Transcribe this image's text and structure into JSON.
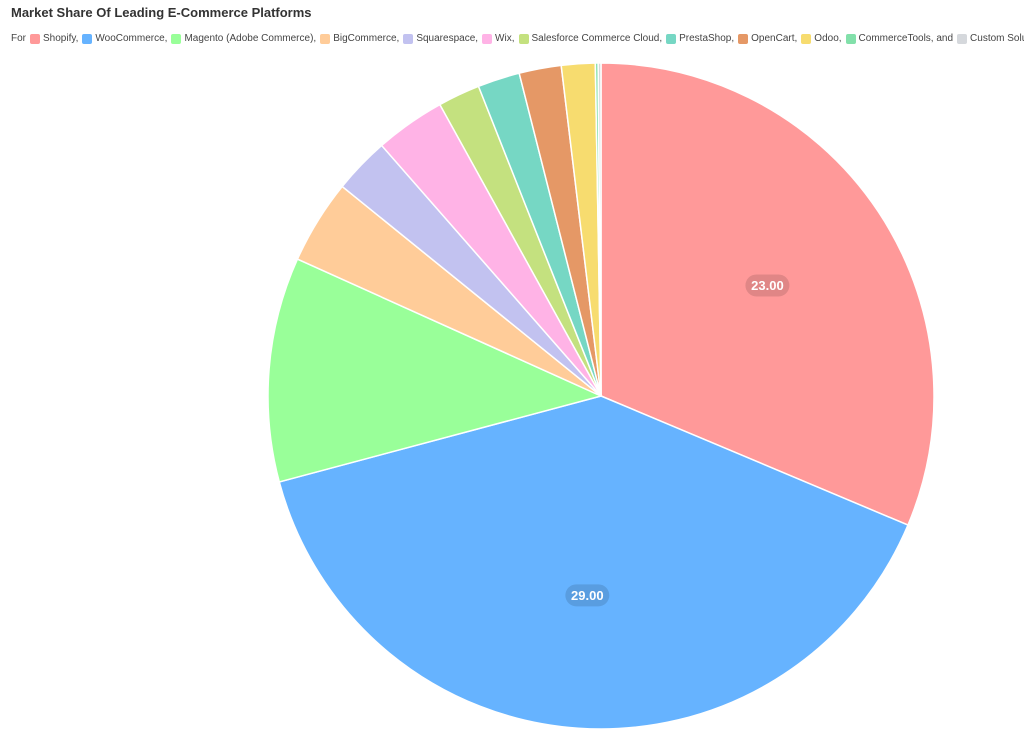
{
  "chart_data": {
    "type": "pie",
    "title": "Market Share Of Leading E-Commerce Platforms",
    "legend_prefix": "For",
    "legend_position": "top-left",
    "categories": [
      "Shopify,",
      "WooCommerce,",
      "Magento (Adobe Commerce),",
      "BigCommerce,",
      "Squarespace,",
      "Wix,",
      "Salesforce Commerce Cloud,",
      "PrestaShop,",
      "OpenCart,",
      "Odoo,",
      "CommerceTools, and",
      "Custom Solutions"
    ],
    "values": [
      23.0,
      29.0,
      8.0,
      3.0,
      2.0,
      2.5,
      1.5,
      1.5,
      1.5,
      1.2,
      0.1,
      0.1
    ],
    "colors": [
      "#ff9999",
      "#66b3ff",
      "#99ff99",
      "#ffcc99",
      "#c2c2f0",
      "#ffb3e6",
      "#c4e17f",
      "#76d7c4",
      "#e59866",
      "#f7dc6f",
      "#82e0aa",
      "#d5d8dc"
    ],
    "value_labels": [
      "23.00",
      "29.00",
      "",
      "",
      "",
      "",
      "",
      "",
      "",
      "",
      "",
      ""
    ]
  }
}
